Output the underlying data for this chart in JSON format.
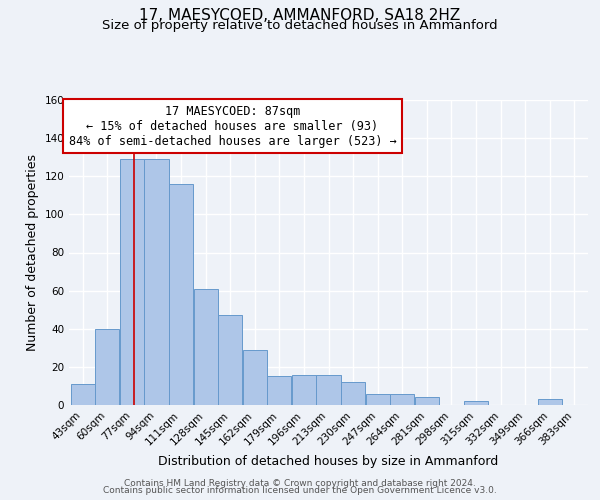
{
  "title": "17, MAESYCOED, AMMANFORD, SA18 2HZ",
  "subtitle": "Size of property relative to detached houses in Ammanford",
  "xlabel": "Distribution of detached houses by size in Ammanford",
  "ylabel": "Number of detached properties",
  "bin_labels": [
    "43sqm",
    "60sqm",
    "77sqm",
    "94sqm",
    "111sqm",
    "128sqm",
    "145sqm",
    "162sqm",
    "179sqm",
    "196sqm",
    "213sqm",
    "230sqm",
    "247sqm",
    "264sqm",
    "281sqm",
    "298sqm",
    "315sqm",
    "332sqm",
    "349sqm",
    "366sqm",
    "383sqm"
  ],
  "bin_values": [
    11,
    40,
    129,
    129,
    116,
    61,
    47,
    29,
    15,
    16,
    16,
    12,
    6,
    6,
    4,
    0,
    2,
    0,
    0,
    3,
    0
  ],
  "bin_edges": [
    43,
    60,
    77,
    94,
    111,
    128,
    145,
    162,
    179,
    196,
    213,
    230,
    247,
    264,
    281,
    298,
    315,
    332,
    349,
    366,
    383
  ],
  "bar_color": "#aec6e8",
  "bar_edge_color": "#6699cc",
  "property_line_x": 87,
  "property_line_color": "#cc0000",
  "ylim": [
    0,
    160
  ],
  "yticks": [
    0,
    20,
    40,
    60,
    80,
    100,
    120,
    140,
    160
  ],
  "annotation_title": "17 MAESYCOED: 87sqm",
  "annotation_line1": "← 15% of detached houses are smaller (93)",
  "annotation_line2": "84% of semi-detached houses are larger (523) →",
  "annotation_box_color": "#ffffff",
  "annotation_box_edge_color": "#cc0000",
  "footer_line1": "Contains HM Land Registry data © Crown copyright and database right 2024.",
  "footer_line2": "Contains public sector information licensed under the Open Government Licence v3.0.",
  "background_color": "#eef2f8",
  "grid_color": "#ffffff",
  "title_fontsize": 11,
  "subtitle_fontsize": 9.5,
  "axis_label_fontsize": 9,
  "tick_fontsize": 7.5,
  "annotation_fontsize": 8.5,
  "footer_fontsize": 6.5
}
